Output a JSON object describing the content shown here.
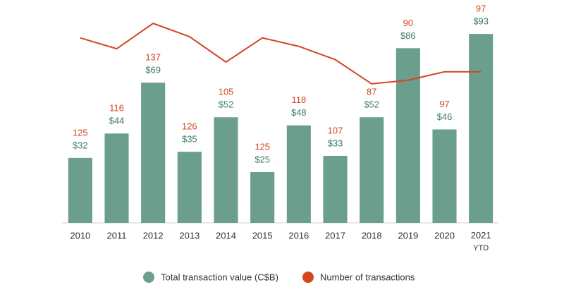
{
  "chart_data": {
    "type": "bar-line",
    "categories": [
      "2010",
      "2011",
      "2012",
      "2013",
      "2014",
      "2015",
      "2016",
      "2017",
      "2018",
      "2019",
      "2020",
      "2021 YTD"
    ],
    "series": [
      {
        "name": "Total transaction value (C$B)",
        "type": "bar",
        "color": "#6b9e8c",
        "label_color": "#3d7d68",
        "values": [
          32,
          44,
          69,
          35,
          52,
          25,
          48,
          33,
          52,
          86,
          46,
          93
        ],
        "value_labels": [
          "$32",
          "$44",
          "$69",
          "$35",
          "$52",
          "$25",
          "$48",
          "$33",
          "$52",
          "$86",
          "$46",
          "$93"
        ]
      },
      {
        "name": "Number of transactions",
        "type": "line",
        "axis": "y2",
        "color": "#d4461f",
        "label_color": "#d4461f",
        "values": [
          125,
          116,
          137,
          126,
          105,
          125,
          118,
          107,
          87,
          90,
          97,
          97
        ]
      }
    ],
    "ylim": [
      0,
      100
    ],
    "y2lim": [
      -28,
      140
    ]
  }
}
